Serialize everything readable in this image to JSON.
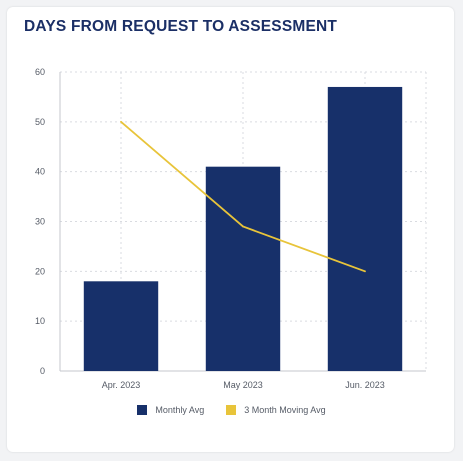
{
  "card": {
    "title": "DAYS FROM REQUEST TO ASSESSMENT"
  },
  "chart_data": {
    "type": "bar",
    "categories": [
      "Apr. 2023",
      "May 2023",
      "Jun. 2023"
    ],
    "series": [
      {
        "name": "Monthly Avg",
        "type": "bar",
        "color": "#17306a",
        "values": [
          18,
          41,
          57
        ]
      },
      {
        "name": "3 Month Moving Avg",
        "type": "line",
        "color": "#e8c43a",
        "values": [
          50,
          29,
          20
        ]
      }
    ],
    "ylim": [
      0,
      60
    ],
    "yticks": [
      0,
      10,
      20,
      30,
      40,
      50,
      60
    ],
    "grid": true,
    "legend": "bottom-center"
  }
}
